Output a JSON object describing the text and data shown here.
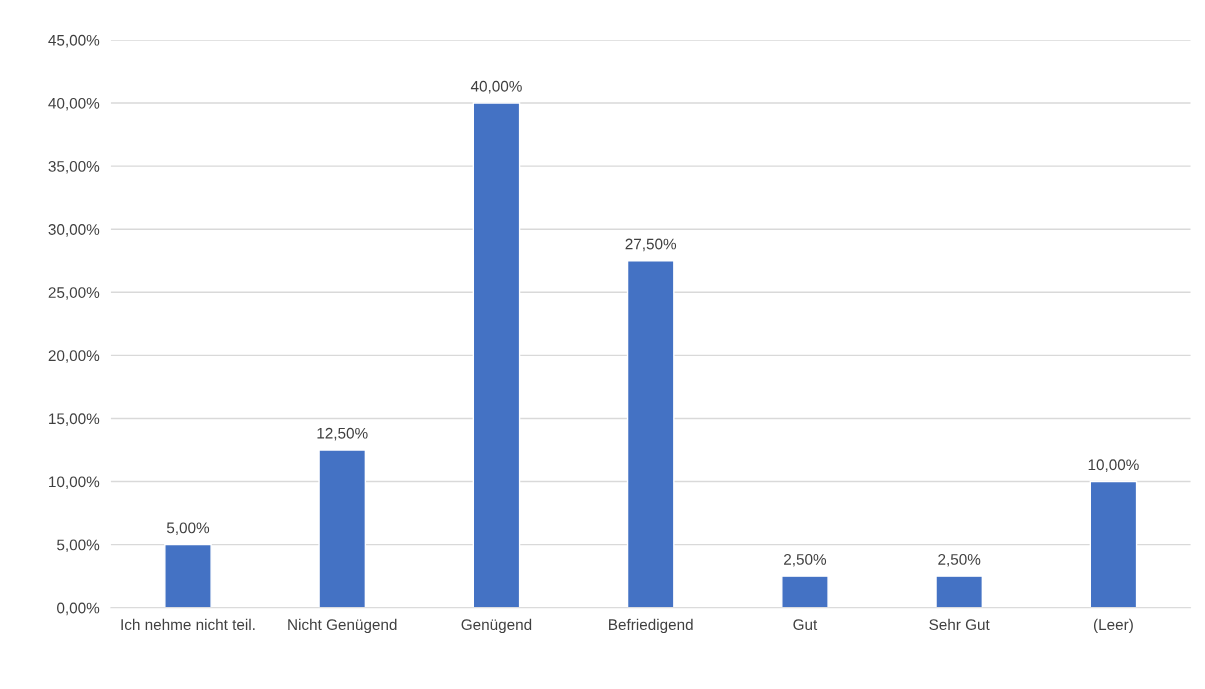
{
  "chart_data": {
    "type": "bar",
    "categories": [
      "Ich nehme nicht teil.",
      "Nicht Genügend",
      "Genügend",
      "Befriedigend",
      "Gut",
      "Sehr Gut",
      "(Leer)"
    ],
    "values": [
      5,
      12.5,
      40,
      27.5,
      2.5,
      2.5,
      10
    ],
    "value_labels": [
      "5,00%",
      "12,50%",
      "40,00%",
      "27,50%",
      "2,50%",
      "2,50%",
      "10,00%"
    ],
    "color": "#4472c4",
    "ylim": [
      0,
      45
    ],
    "yticks": [
      {
        "value": 0,
        "label": "0,00%"
      },
      {
        "value": 5,
        "label": "5,00%"
      },
      {
        "value": 10,
        "label": "10,00%"
      },
      {
        "value": 15,
        "label": "15,00%"
      },
      {
        "value": 20,
        "label": "20,00%"
      },
      {
        "value": 25,
        "label": "25,00%"
      },
      {
        "value": 30,
        "label": "30,00%"
      },
      {
        "value": 35,
        "label": "35,00%"
      },
      {
        "value": 40,
        "label": "40,00%"
      },
      {
        "value": 45,
        "label": "45,00%"
      }
    ],
    "grid": "y",
    "legend": false
  }
}
